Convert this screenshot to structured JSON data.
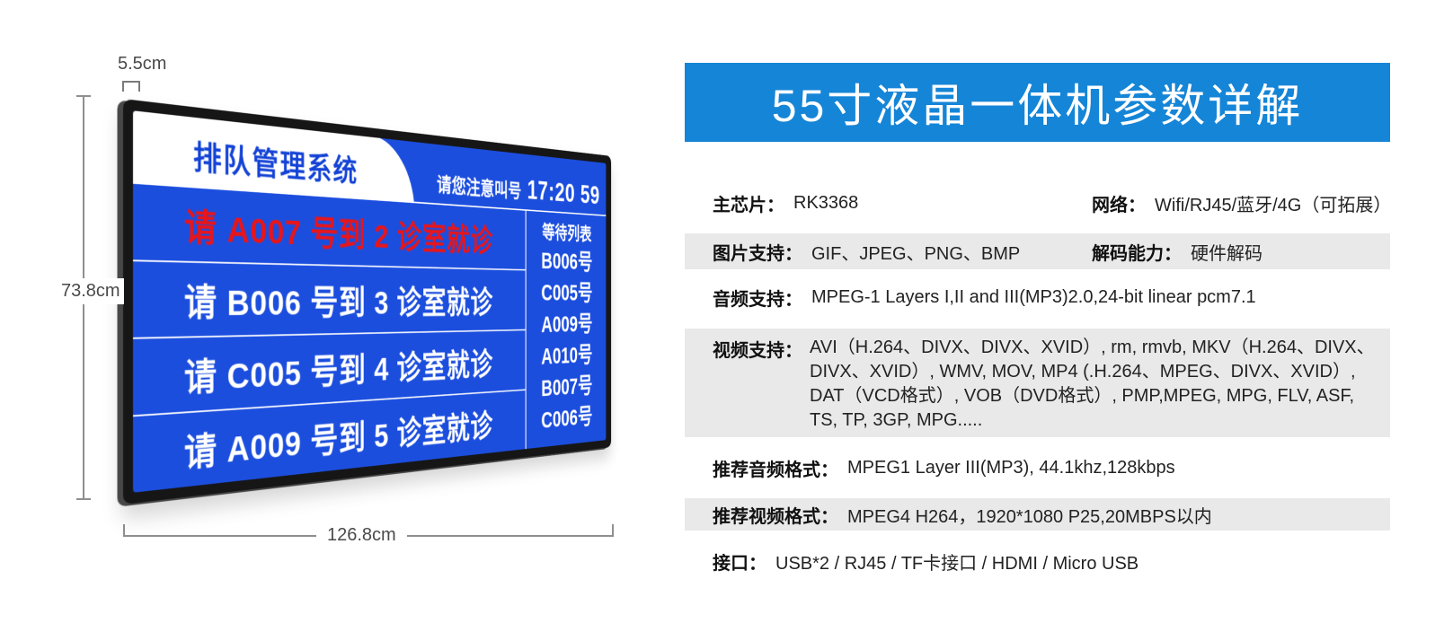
{
  "colors": {
    "banner_blue": "#1585d7",
    "screen_blue": "#1c4ede",
    "shaded_gray": "#e9e9e9",
    "alert_red": "#e8151a"
  },
  "monitor": {
    "dimensions": {
      "depth_label": "5.5cm",
      "height_label": "73.8cm",
      "width_label": "126.8cm"
    },
    "screen": {
      "system_title": "排队管理系统",
      "notice_label": "请您注意叫号",
      "clock": "17:20 59",
      "calls": [
        {
          "text": "请 A007 号到 2 诊室就诊"
        },
        {
          "text": "请 B006 号到 3 诊室就诊"
        },
        {
          "text": "请 C005 号到 4 诊室就诊"
        },
        {
          "text": "请 A009 号到 5 诊室就诊"
        }
      ],
      "waiting_list": {
        "header": "等待列表",
        "items": [
          "B006号",
          "C005号",
          "A009号",
          "A010号",
          "B007号",
          "C006号"
        ]
      }
    }
  },
  "panel": {
    "title": "55寸液晶一体机参数详解",
    "rows": [
      {
        "cols": [
          {
            "label": "主芯片：",
            "value": "RK3368"
          },
          {
            "label": "网络：",
            "value": "Wifi/RJ45/蓝牙/4G（可拓展）"
          }
        ]
      },
      {
        "cols": [
          {
            "label": "图片支持：",
            "value": "GIF、JPEG、PNG、BMP"
          },
          {
            "label": "解码能力：",
            "value": "硬件解码"
          }
        ]
      },
      {
        "cols": [
          {
            "label": "音频支持：",
            "value": "MPEG-1 Layers I,II and III(MP3)2.0,24-bit linear pcm7.1"
          }
        ]
      },
      {
        "cols": [
          {
            "label": "视频支持：",
            "value": "AVI（H.264、DIVX、DIVX、XVID）, rm, rmvb, MKV（H.264、DIVX、DIVX、XVID）, WMV, MOV, MP4 (.H.264、MPEG、DIVX、XVID）, DAT（VCD格式）, VOB（DVD格式）, PMP,MPEG, MPG, FLV, ASF, TS, TP, 3GP, MPG....."
          }
        ]
      },
      {
        "cols": [
          {
            "label": "推荐音频格式：",
            "value": "MPEG1 Layer III(MP3), 44.1khz,128kbps"
          }
        ]
      },
      {
        "cols": [
          {
            "label": "推荐视频格式：",
            "value": "MPEG4 H264，1920*1080 P25,20MBPS以内"
          }
        ]
      },
      {
        "cols": [
          {
            "label": "接口：",
            "value": "USB*2 / RJ45 / TF卡接口 / HDMI / Micro USB"
          }
        ]
      }
    ]
  }
}
